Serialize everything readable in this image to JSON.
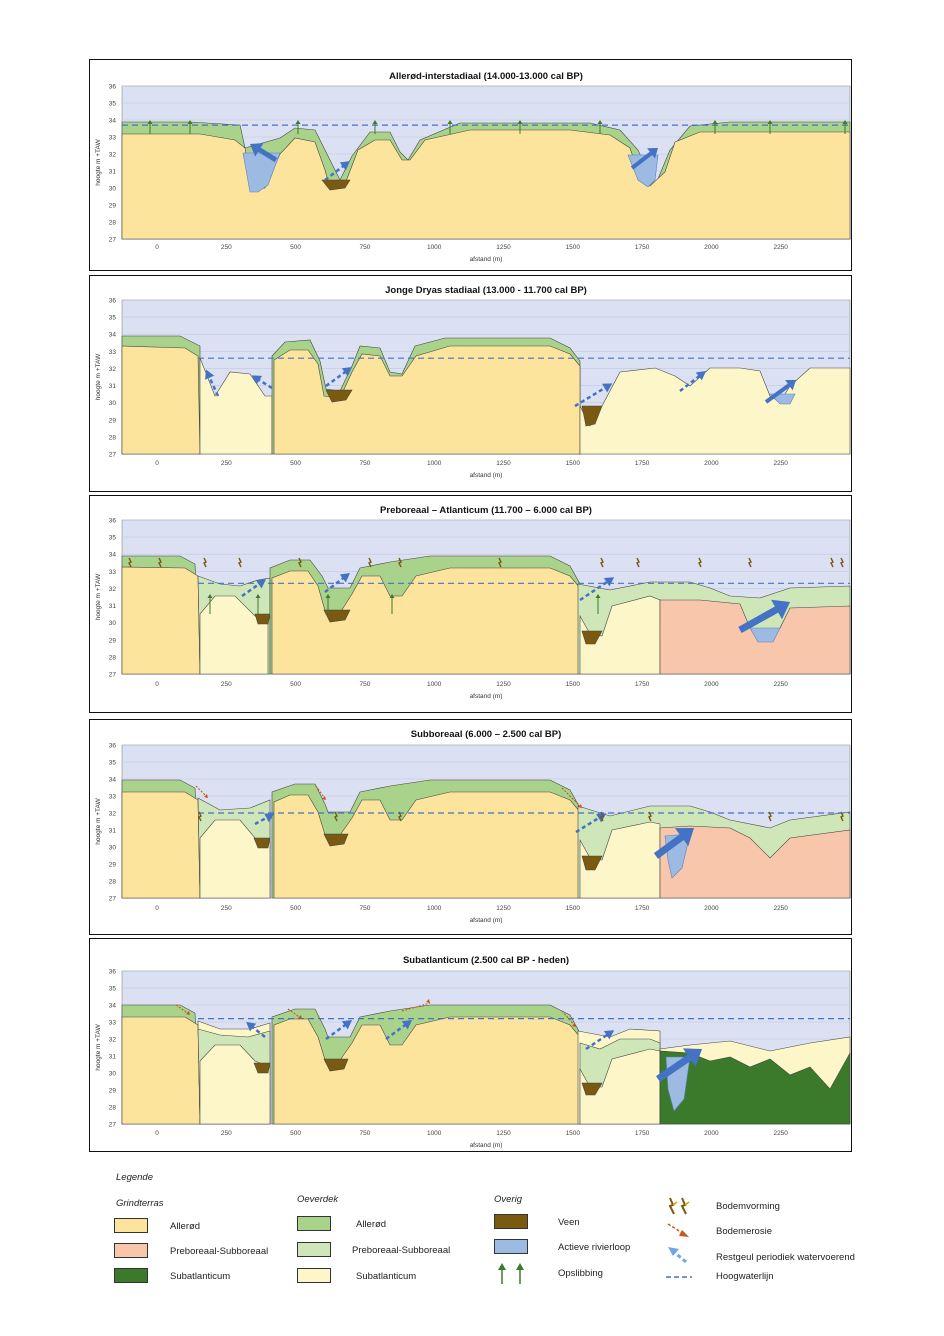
{
  "axis": {
    "ylabel": "hoogte m +TAW",
    "xlabel": "afstand (m)",
    "yticks": [
      "36",
      "35",
      "34",
      "33",
      "32",
      "31",
      "30",
      "29",
      "28",
      "27"
    ],
    "xticks": [
      "0",
      "250",
      "500",
      "750",
      "1000",
      "1250",
      "1500",
      "1750",
      "2000",
      "2250"
    ]
  },
  "panels": [
    {
      "title": "Allerød-interstadiaal (14.000-13.000 cal BP)"
    },
    {
      "title": "Jonge Dryas stadiaal (13.000 - 11.700 cal BP)"
    },
    {
      "title": "Preboreaal – Atlanticum (11.700 – 6.000 cal BP)"
    },
    {
      "title": "Subboreaal (6.000 – 2.500 cal BP)"
    },
    {
      "title": "Subatlanticum (2.500 cal BP - heden)"
    }
  ],
  "legend": {
    "title": "Legende",
    "groups": {
      "grindterras": "Grindterras",
      "oeverdek": "Oeverdek",
      "overig": "Overig"
    },
    "items": {
      "grind_allerod": "Allerød",
      "grind_preboreaal": "Preboreaal-Subboreaal",
      "grind_subatlanticum": "Subatlanticum",
      "oever_allerod": "Allerød",
      "oever_preboreaal": "Preboreaal-Subboreaal",
      "oever_subatlanticum": "Subatlanticum",
      "veen": "Veen",
      "actieve_rivierloop": "Actieve rivierloop",
      "opslibbing": "Opslibbing",
      "bodemvorming": "Bodemvorming",
      "bodemerosie": "Bodemerosie",
      "restgeul": "Restgeul periodiek watervoerend",
      "hoogwaterlijn": "Hoogwaterlijn"
    }
  },
  "colors": {
    "sky": "#dbe1f2",
    "grind_allerod": "#fde49c",
    "grind_preboreaal": "#f7c6ab",
    "grind_subatlanticum": "#3b7a2b",
    "oever_allerod": "#a9d28b",
    "oever_preboreaal": "#cfe6b9",
    "oever_subatlanticum": "#fdf6c8",
    "veen": "#7a5a10",
    "water": "#9dbbe2",
    "arrow": "#4472c4"
  }
}
